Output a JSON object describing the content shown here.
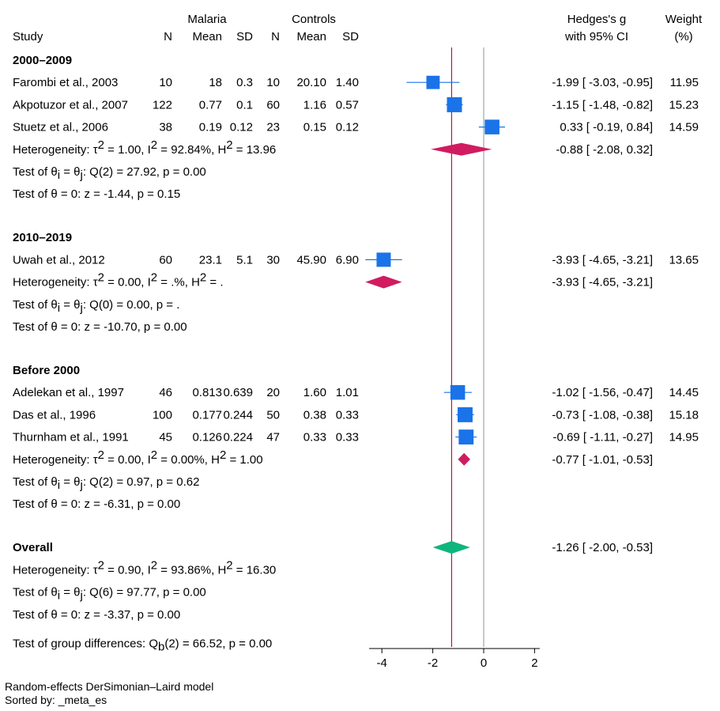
{
  "chart_data": {
    "type": "forest",
    "header": {
      "group_malaria": "Malaria",
      "group_controls": "Controls",
      "study": "Study",
      "n": "N",
      "mean": "Mean",
      "sd": "SD",
      "effect_line1": "Hedges's g",
      "effect_line2": "with 95% CI",
      "weight_line1": "Weight",
      "weight_line2": "(%)"
    },
    "xlim": [
      -4.5,
      2.2
    ],
    "xticks": [
      -4,
      -2,
      0,
      2
    ],
    "no_effect_line": 0,
    "overall_line": -1.26,
    "groups": [
      {
        "title": "2000–2009",
        "studies": [
          {
            "name": "Farombi et al., 2003",
            "n1": "10",
            "m1": "18",
            "sd1": "0.3",
            "n2": "10",
            "m2": "20.10",
            "sd2": "1.40",
            "es": -1.99,
            "lo": -3.03,
            "hi": -0.95,
            "ci_text": "-1.99 [ -3.03, -0.95]",
            "weight": 11.95,
            "weight_text": "11.95"
          },
          {
            "name": "Akpotuzor et al., 2007",
            "n1": "122",
            "m1": "0.77",
            "sd1": "0.1",
            "n2": "60",
            "m2": "1.16",
            "sd2": "0.57",
            "es": -1.15,
            "lo": -1.48,
            "hi": -0.82,
            "ci_text": "-1.15 [ -1.48, -0.82]",
            "weight": 15.23,
            "weight_text": "15.23"
          },
          {
            "name": "Stuetz et al., 2006",
            "n1": "38",
            "m1": "0.19",
            "sd1": "0.12",
            "n2": "23",
            "m2": "0.15",
            "sd2": "0.12",
            "es": 0.33,
            "lo": -0.19,
            "hi": 0.84,
            "ci_text": "0.33 [ -0.19,  0.84]",
            "weight": 14.59,
            "weight_text": "14.59"
          }
        ],
        "summary": {
          "es": -0.88,
          "lo": -2.08,
          "hi": 0.32,
          "ci_text": "-0.88 [ -2.08,  0.32]"
        },
        "heterogeneity": {
          "tau2": "1.00",
          "i2": "92.84%",
          "h2": "13.96"
        },
        "test_homog": {
          "df": "2",
          "q": "27.92",
          "p": "0.00"
        },
        "test_zero": {
          "z": "-1.44",
          "p": "0.15"
        }
      },
      {
        "title": "2010–2019",
        "studies": [
          {
            "name": "Uwah et al., 2012",
            "n1": "60",
            "m1": "23.1",
            "sd1": "5.1",
            "n2": "30",
            "m2": "45.90",
            "sd2": "6.90",
            "es": -3.93,
            "lo": -4.65,
            "hi": -3.21,
            "ci_text": "-3.93 [ -4.65, -3.21]",
            "weight": 13.65,
            "weight_text": "13.65"
          }
        ],
        "summary": {
          "es": -3.93,
          "lo": -4.65,
          "hi": -3.21,
          "ci_text": "-3.93 [ -4.65, -3.21]"
        },
        "heterogeneity": {
          "tau2": "0.00",
          "i2": ".%",
          "h2": "."
        },
        "test_homog": {
          "df": "0",
          "q": "0.00",
          "p": "."
        },
        "test_zero": {
          "z": "-10.70",
          "p": "0.00"
        }
      },
      {
        "title": "Before 2000",
        "studies": [
          {
            "name": "Adelekan et al., 1997",
            "n1": "46",
            "m1": "0.813",
            "sd1": "0.639",
            "n2": "20",
            "m2": "1.60",
            "sd2": "1.01",
            "es": -1.02,
            "lo": -1.56,
            "hi": -0.47,
            "ci_text": "-1.02 [ -1.56, -0.47]",
            "weight": 14.45,
            "weight_text": "14.45"
          },
          {
            "name": "Das et al., 1996",
            "n1": "100",
            "m1": "0.177",
            "sd1": "0.244",
            "n2": "50",
            "m2": "0.38",
            "sd2": "0.33",
            "es": -0.73,
            "lo": -1.08,
            "hi": -0.38,
            "ci_text": "-0.73 [ -1.08, -0.38]",
            "weight": 15.18,
            "weight_text": "15.18"
          },
          {
            "name": "Thurnham et al., 1991",
            "n1": "45",
            "m1": "0.126",
            "sd1": "0.224",
            "n2": "47",
            "m2": "0.33",
            "sd2": "0.33",
            "es": -0.69,
            "lo": -1.11,
            "hi": -0.27,
            "ci_text": "-0.69 [ -1.11, -0.27]",
            "weight": 14.95,
            "weight_text": "14.95"
          }
        ],
        "summary": {
          "es": -0.77,
          "lo": -1.01,
          "hi": -0.53,
          "ci_text": "-0.77 [ -1.01, -0.53]"
        },
        "heterogeneity": {
          "tau2": "0.00",
          "i2": "0.00%",
          "h2": "1.00"
        },
        "test_homog": {
          "df": "2",
          "q": "0.97",
          "p": "0.62"
        },
        "test_zero": {
          "z": "-6.31",
          "p": "0.00"
        }
      }
    ],
    "overall": {
      "title": "Overall",
      "summary": {
        "es": -1.26,
        "lo": -2.0,
        "hi": -0.53,
        "ci_text": "-1.26 [ -2.00, -0.53]"
      },
      "heterogeneity": {
        "tau2": "0.90",
        "i2": "93.86%",
        "h2": "16.30"
      },
      "test_homog": {
        "df": "6",
        "q": "97.77",
        "p": "0.00"
      },
      "test_zero": {
        "z": "-3.37",
        "p": "0.00"
      }
    },
    "group_diff": {
      "df": "2",
      "q": "66.52",
      "p": "0.00"
    },
    "footnote": [
      "Random-effects DerSimonian–Laird model",
      "Sorted by: _meta_es"
    ],
    "colors": {
      "marker": "#1a73e8",
      "ci_line": "#1a73e8",
      "group_diamond": "#d01c60",
      "overall_diamond": "#0fb57d",
      "overall_line": "#b8163c",
      "zero_line": "#b0b0b0",
      "axis": "#000000"
    }
  }
}
